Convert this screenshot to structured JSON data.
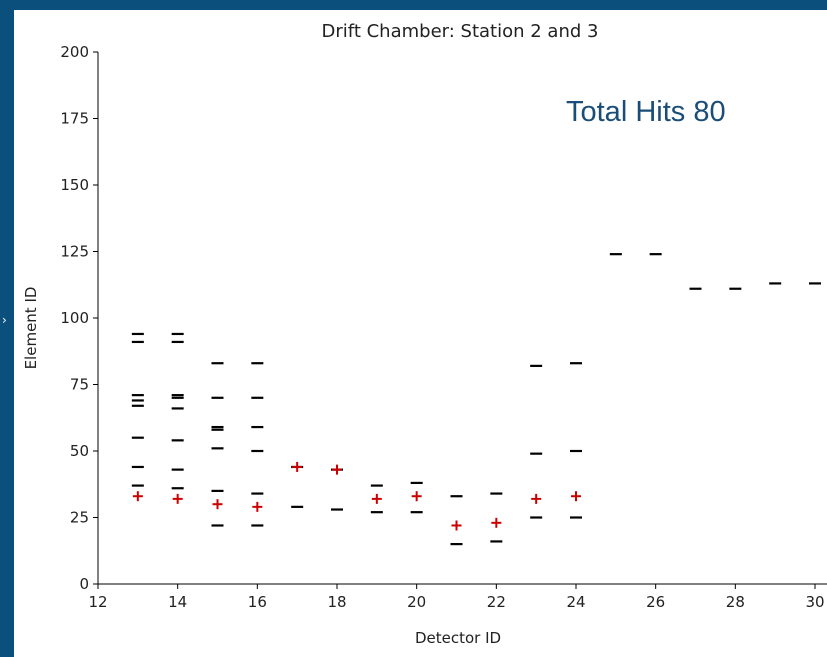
{
  "chart_data": {
    "type": "scatter",
    "title": "Drift Chamber: Station 2 and 3",
    "xlabel": "Detector ID",
    "ylabel": "Element ID",
    "xlim": [
      12,
      30
    ],
    "ylim": [
      0,
      200
    ],
    "xticks": [
      12,
      14,
      16,
      18,
      20,
      22,
      24,
      26,
      28,
      30
    ],
    "yticks": [
      0,
      25,
      50,
      75,
      100,
      125,
      150,
      175,
      200
    ],
    "grid": false,
    "annotation": "Total Hits 80",
    "series": [
      {
        "marker": "hline",
        "color": "#000000",
        "points": [
          [
            13,
            94
          ],
          [
            13,
            91
          ],
          [
            13,
            71
          ],
          [
            13,
            69
          ],
          [
            13,
            67
          ],
          [
            13,
            55
          ],
          [
            13,
            44
          ],
          [
            13,
            37
          ],
          [
            14,
            94
          ],
          [
            14,
            91
          ],
          [
            14,
            71
          ],
          [
            14,
            70
          ],
          [
            14,
            66
          ],
          [
            14,
            54
          ],
          [
            14,
            43
          ],
          [
            14,
            36
          ],
          [
            15,
            83
          ],
          [
            15,
            70
          ],
          [
            15,
            59
          ],
          [
            15,
            58
          ],
          [
            15,
            51
          ],
          [
            15,
            35
          ],
          [
            15,
            22
          ],
          [
            16,
            83
          ],
          [
            16,
            70
          ],
          [
            16,
            59
          ],
          [
            16,
            50
          ],
          [
            16,
            34
          ],
          [
            16,
            22
          ],
          [
            17,
            44
          ],
          [
            17,
            29
          ],
          [
            18,
            43
          ],
          [
            18,
            28
          ],
          [
            19,
            37
          ],
          [
            19,
            27
          ],
          [
            20,
            38
          ],
          [
            20,
            27
          ],
          [
            21,
            33
          ],
          [
            21,
            15
          ],
          [
            22,
            34
          ],
          [
            22,
            16
          ],
          [
            23,
            82
          ],
          [
            23,
            49
          ],
          [
            23,
            25
          ],
          [
            24,
            83
          ],
          [
            24,
            50
          ],
          [
            24,
            25
          ],
          [
            25,
            124
          ],
          [
            26,
            124
          ],
          [
            27,
            111
          ],
          [
            28,
            111
          ],
          [
            29,
            113
          ],
          [
            30,
            113
          ]
        ]
      },
      {
        "marker": "plus",
        "color": "#cc0000",
        "points": [
          [
            13,
            33
          ],
          [
            14,
            32
          ],
          [
            15,
            30
          ],
          [
            16,
            29
          ],
          [
            17,
            44
          ],
          [
            18,
            43
          ],
          [
            19,
            32
          ],
          [
            20,
            33
          ],
          [
            21,
            22
          ],
          [
            22,
            23
          ],
          [
            23,
            32
          ],
          [
            24,
            33
          ]
        ]
      }
    ]
  }
}
